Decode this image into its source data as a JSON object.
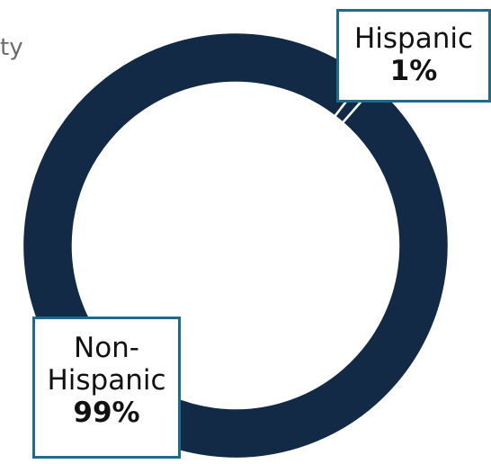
{
  "title_fragment": "ty",
  "colors": {
    "primary_slice": "#122a45",
    "separator": "#ffffff",
    "callout_border": "#1f6b8c"
  },
  "labels": {
    "hispanic": {
      "name": "Hispanic",
      "percent": "1%"
    },
    "non_hispanic": {
      "name_line1": "Non-",
      "name_line2": "Hispanic",
      "percent": "99%"
    }
  },
  "chart_data": {
    "type": "pie",
    "donut": true,
    "categories": [
      "Hispanic",
      "Non-Hispanic"
    ],
    "values": [
      1,
      99
    ],
    "title": "",
    "legend": "none"
  }
}
